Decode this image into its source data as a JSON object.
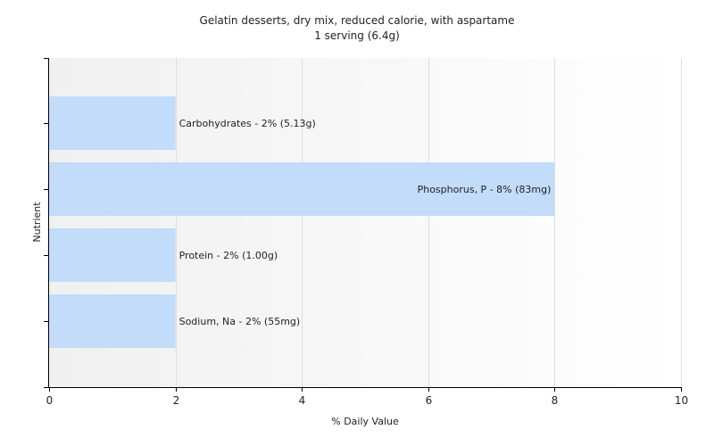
{
  "chart_data": {
    "type": "bar",
    "orientation": "horizontal",
    "title": "Gelatin desserts, dry mix, reduced calorie, with aspartame",
    "subtitle": "1 serving (6.4g)",
    "xlabel": "% Daily Value",
    "ylabel": "Nutrient",
    "xlim": [
      0,
      10
    ],
    "xticks": [
      "0",
      "2",
      "4",
      "6",
      "8",
      "10"
    ],
    "grid": true,
    "legend": "none",
    "bar_color": "#c2dcfa",
    "categories": [
      "Carbohydrates",
      "Phosphorus, P",
      "Protein",
      "Sodium, Na"
    ],
    "values": [
      2,
      8,
      2,
      2
    ],
    "labels": [
      "Carbohydrates - 2% (5.13g)",
      "Phosphorus, P - 8% (83mg)",
      "Protein - 2% (1.00g)",
      "Sodium, Na - 2% (55mg)"
    ]
  }
}
